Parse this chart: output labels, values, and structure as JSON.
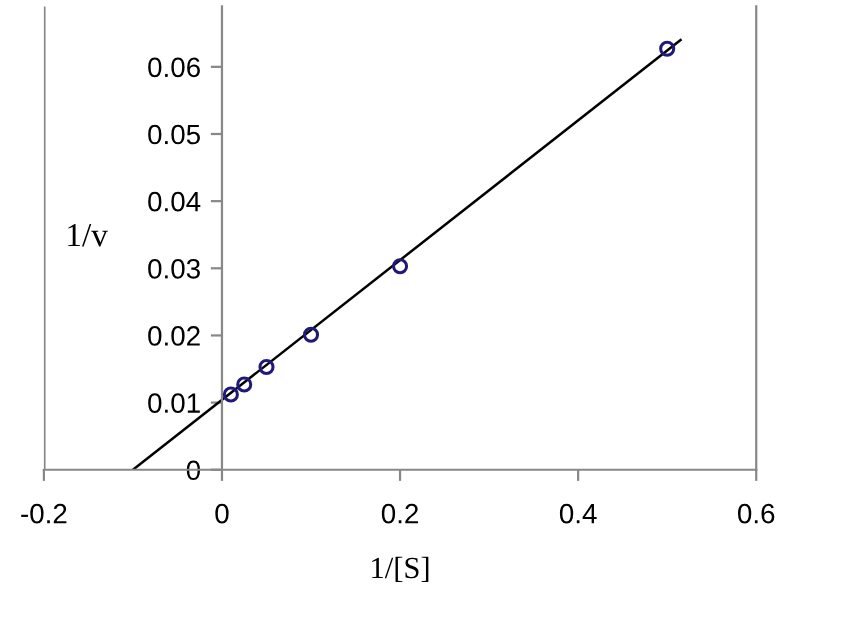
{
  "chart_data": {
    "type": "scatter",
    "xlabel": "1/[S]",
    "ylabel": "1/v",
    "xlim": [
      -0.2,
      0.6
    ],
    "ylim": [
      0,
      0.069
    ],
    "xticks": [
      -0.2,
      0,
      0.2,
      0.4,
      0.6
    ],
    "yticks": [
      0,
      0.01,
      0.02,
      0.03,
      0.04,
      0.05,
      0.06
    ],
    "grid": false,
    "series": [
      {
        "color": "#1f1a7a",
        "marker": "circle",
        "x": [
          0.01,
          0.025,
          0.05,
          0.1,
          0.2,
          0.5
        ],
        "values": [
          0.0112,
          0.0127,
          0.0153,
          0.0201,
          0.0303,
          0.0627
        ]
      },
      {
        "type": "line",
        "color": "#000000",
        "marker": "none",
        "x": [
          -0.1,
          0.515
        ],
        "values": [
          0,
          0.064
        ]
      }
    ]
  }
}
